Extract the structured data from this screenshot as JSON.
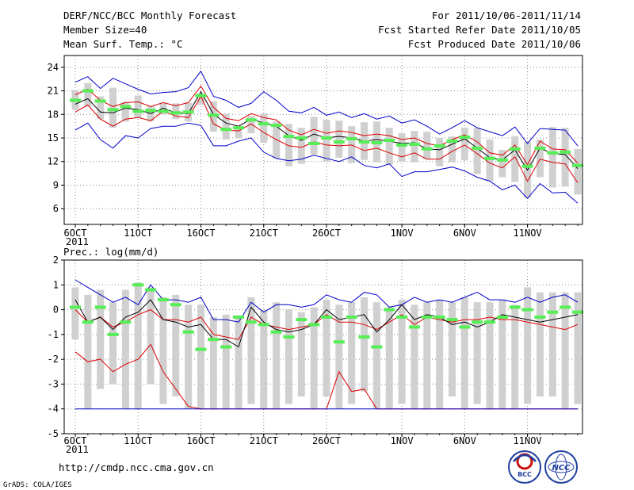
{
  "header": {
    "title": "DERF/NCC/BCC Monthly Forecast",
    "member_size": "Member Size=40",
    "variable": "Mean Surf. Temp.: °C",
    "period": "For 2011/10/06-2011/11/14",
    "started": "Fcst Started Refer Date 2011/10/05",
    "produced": "Fcst Produced Date 2011/10/06"
  },
  "footer": {
    "url": "http://cmdp.ncc.cma.gov.cn",
    "grads": "GrADS: COLA/IGES",
    "logo_bcc": "BCC",
    "logo_ncc": "NCC"
  },
  "colors": {
    "max": "#0000cc",
    "p75": "#dd0000",
    "median": "#000000",
    "box": "#d0d0d0",
    "obs": "#55ee55"
  },
  "chart_data": [
    {
      "type": "line",
      "title": "Mean Surf. Temp.: °C",
      "xlabel": "",
      "ylabel": "",
      "ylim": [
        4,
        25.5
      ],
      "yticks": [
        6,
        9,
        12,
        15,
        18,
        21,
        24
      ],
      "x_ticks": [
        {
          "day": 0,
          "label": "6OCT"
        },
        {
          "day": 5,
          "label": "11OCT"
        },
        {
          "day": 10,
          "label": "16OCT"
        },
        {
          "day": 15,
          "label": "21OCT"
        },
        {
          "day": 20,
          "label": "26OCT"
        },
        {
          "day": 26,
          "label": "1NOV"
        },
        {
          "day": 31,
          "label": "6NOV"
        },
        {
          "day": 36,
          "label": "11NOV"
        }
      ],
      "x_year": "2011",
      "grid": true,
      "series": [
        {
          "name": "Max",
          "color": "#0000cc",
          "values": [
            22.1,
            22.8,
            21.3,
            22.6,
            21.9,
            21.2,
            20.6,
            20.8,
            20.9,
            21.4,
            23.5,
            20.3,
            19.8,
            18.9,
            19.4,
            20.9,
            19.8,
            18.4,
            18.2,
            18.9,
            17.9,
            18.3,
            17.6,
            18.1,
            17.4,
            17.8,
            16.9,
            17.3,
            16.5,
            15.5,
            16.3,
            17.2,
            16.3,
            15.8,
            15.3,
            16.4,
            14.3,
            16.2,
            16.1,
            16.0,
            14.0
          ]
        },
        {
          "name": "P75",
          "color": "#dd0000",
          "values": [
            20.5,
            21.2,
            19.8,
            19.0,
            19.5,
            19.6,
            19.0,
            19.5,
            19.1,
            19.5,
            21.6,
            18.9,
            17.5,
            17.2,
            18.1,
            17.6,
            17.3,
            16.0,
            15.4,
            16.1,
            15.6,
            15.9,
            15.7,
            15.3,
            15.5,
            15.3,
            14.8,
            15.0,
            14.3,
            14.0,
            14.8,
            15.4,
            14.5,
            13.1,
            12.8,
            14.1,
            11.6,
            14.6,
            13.6,
            13.5,
            11.8
          ]
        },
        {
          "name": "Median",
          "color": "#000000",
          "values": [
            19.3,
            20.0,
            18.3,
            18.2,
            18.8,
            18.6,
            18.1,
            18.8,
            18.2,
            18.1,
            20.9,
            18.0,
            16.9,
            16.5,
            17.4,
            16.9,
            16.5,
            15.3,
            14.7,
            15.5,
            15.0,
            15.2,
            15.0,
            14.6,
            14.8,
            14.6,
            14.3,
            14.4,
            13.6,
            13.5,
            14.2,
            14.9,
            13.7,
            12.5,
            12.2,
            13.5,
            10.9,
            13.7,
            13.0,
            12.9,
            11.1
          ]
        },
        {
          "name": "P25",
          "color": "#dd0000",
          "values": [
            18.3,
            19.2,
            17.4,
            16.5,
            17.4,
            17.6,
            17.2,
            18.4,
            17.8,
            17.6,
            20.3,
            16.8,
            16.0,
            15.9,
            16.8,
            15.7,
            14.8,
            14.0,
            13.8,
            14.5,
            14.1,
            14.0,
            14.1,
            13.4,
            13.7,
            13.1,
            12.6,
            13.1,
            12.3,
            12.3,
            13.3,
            14.1,
            13.0,
            11.8,
            11.2,
            12.6,
            9.5,
            12.3,
            11.9,
            11.7,
            9.3
          ]
        },
        {
          "name": "Min",
          "color": "#0000cc",
          "values": [
            16.0,
            16.9,
            14.8,
            13.7,
            15.3,
            15.0,
            16.2,
            16.5,
            16.5,
            16.9,
            16.6,
            14.0,
            14.0,
            14.6,
            15.0,
            13.2,
            12.4,
            12.1,
            12.3,
            12.8,
            12.4,
            12.0,
            12.6,
            11.5,
            11.2,
            11.7,
            10.1,
            10.7,
            10.7,
            11.0,
            11.3,
            10.8,
            10.0,
            9.5,
            8.4,
            9.0,
            7.3,
            9.2,
            8.0,
            8.1,
            6.7
          ]
        }
      ],
      "box_low": [
        18.6,
        19.0,
        17.4,
        16.3,
        17.1,
        17.6,
        17.1,
        18.0,
        17.4,
        17.1,
        19.2,
        15.8,
        14.8,
        15.0,
        15.6,
        14.4,
        12.4,
        11.4,
        11.7,
        12.9,
        12.0,
        12.5,
        11.8,
        12.2,
        11.9,
        11.6,
        12.0,
        11.9,
        12.3,
        11.4,
        11.9,
        12.2,
        10.4,
        9.5,
        10.0,
        9.4,
        7.4,
        10.0,
        8.7,
        8.8,
        7.8
      ],
      "box_high": [
        21.1,
        22.0,
        20.3,
        21.4,
        19.6,
        20.4,
        19.1,
        19.5,
        19.4,
        19.5,
        20.6,
        19.7,
        18.1,
        16.2,
        17.8,
        18.1,
        17.1,
        16.8,
        16.3,
        17.7,
        17.3,
        17.2,
        16.5,
        17.0,
        17.1,
        16.3,
        15.6,
        15.9,
        15.8,
        15.0,
        15.2,
        16.3,
        16.3,
        14.8,
        13.5,
        15.2,
        14.5,
        14.8,
        16.4,
        16.3,
        13.6
      ],
      "observed": [
        19.8,
        21.0,
        19.7,
        18.6,
        19.0,
        18.4,
        18.5,
        18.4,
        18.2,
        18.3,
        20.4,
        17.9,
        16.1,
        16.3,
        17.3,
        16.8,
        16.6,
        15.2,
        15.0,
        14.3,
        15.0,
        14.5,
        14.9,
        14.5,
        14.4,
        14.7,
        14.1,
        14.2,
        13.6,
        14.0,
        14.6,
        15.1,
        13.7,
        12.4,
        12.2,
        13.6,
        11.4,
        13.7,
        13.1,
        13.2,
        11.5
      ]
    },
    {
      "type": "line",
      "title": "Prec.: log(mm/d)",
      "xlabel": "",
      "ylabel": "",
      "ylim": [
        -5,
        2
      ],
      "yticks": [
        -5,
        -4,
        -3,
        -2,
        -1,
        0,
        1,
        2
      ],
      "x_ticks": [
        {
          "day": 0,
          "label": "6OCT"
        },
        {
          "day": 5,
          "label": "11OCT"
        },
        {
          "day": 10,
          "label": "16OCT"
        },
        {
          "day": 15,
          "label": "21OCT"
        },
        {
          "day": 20,
          "label": "26OCT"
        },
        {
          "day": 26,
          "label": "1NOV"
        },
        {
          "day": 31,
          "label": "6NOV"
        },
        {
          "day": 36,
          "label": "11NOV"
        }
      ],
      "x_year": "2011",
      "grid": true,
      "series": [
        {
          "name": "Max",
          "color": "#0000cc",
          "values": [
            1.2,
            0.9,
            0.6,
            0.3,
            0.5,
            0.2,
            1.0,
            0.4,
            0.4,
            0.3,
            0.5,
            -0.4,
            -0.4,
            -0.5,
            0.3,
            -0.1,
            0.2,
            0.2,
            0.1,
            0.2,
            0.6,
            0.4,
            0.3,
            0.7,
            0.6,
            0.1,
            0.2,
            0.5,
            0.3,
            0.4,
            0.3,
            0.5,
            0.7,
            0.4,
            0.4,
            0.3,
            0.5,
            0.3,
            0.5,
            0.6,
            0.3
          ]
        },
        {
          "name": "P75",
          "color": "#dd0000",
          "values": [
            0.0,
            -0.5,
            -0.3,
            -0.7,
            -0.5,
            -0.2,
            0.0,
            -0.4,
            -0.4,
            -0.5,
            -0.3,
            -1.0,
            -1.1,
            -1.2,
            -0.3,
            -0.6,
            -0.7,
            -0.8,
            -0.7,
            -0.6,
            -0.2,
            -0.5,
            -0.5,
            -0.6,
            -0.8,
            -0.5,
            -0.2,
            -0.6,
            -0.3,
            -0.4,
            -0.5,
            -0.4,
            -0.4,
            -0.3,
            -0.4,
            -0.4,
            -0.5,
            -0.6,
            -0.7,
            -0.8,
            -0.6
          ]
        },
        {
          "name": "Median",
          "color": "#000000",
          "values": [
            0.4,
            -0.5,
            -0.3,
            -0.8,
            -0.3,
            -0.1,
            0.4,
            -0.4,
            -0.5,
            -0.7,
            -0.6,
            -1.2,
            -1.2,
            -1.5,
            0.1,
            -0.5,
            -0.8,
            -0.9,
            -0.8,
            -0.6,
            0.0,
            -0.4,
            -0.3,
            -0.2,
            -0.9,
            -0.4,
            0.2,
            -0.4,
            -0.2,
            -0.3,
            -0.6,
            -0.5,
            -0.7,
            -0.5,
            -0.2,
            -0.3,
            -0.4,
            -0.5,
            -0.4,
            -0.3,
            -0.2
          ]
        },
        {
          "name": "P25",
          "color": "#dd0000",
          "values": [
            -1.7,
            -2.1,
            -2.0,
            -2.5,
            -2.2,
            -2.0,
            -1.4,
            -2.5,
            -3.2,
            -3.9,
            -4.0,
            -4.0,
            -4.0,
            -4.0,
            -4.0,
            -4.0,
            -4.0,
            -4.0,
            -4.0,
            -4.0,
            -4.0,
            -2.5,
            -3.3,
            -3.2,
            -4.0,
            -4.0,
            -4.0,
            -4.0,
            -4.0,
            -4.0,
            -4.0,
            -4.0,
            -4.0,
            -4.0,
            -4.0,
            -4.0,
            -4.0,
            -4.0,
            -4.0,
            -4.0,
            -4.0
          ]
        },
        {
          "name": "Min",
          "color": "#0000cc",
          "values": [
            -4.0,
            -4.0,
            -4.0,
            -4.0,
            -4.0,
            -4.0,
            -4.0,
            -4.0,
            -4.0,
            -4.0,
            -4.0,
            -4.0,
            -4.0,
            -4.0,
            -4.0,
            -4.0,
            -4.0,
            -4.0,
            -4.0,
            -4.0,
            -4.0,
            -4.0,
            -4.0,
            -4.0,
            -4.0,
            -4.0,
            -4.0,
            -4.0,
            -4.0,
            -4.0,
            -4.0,
            -4.0,
            -4.0,
            -4.0,
            -4.0,
            -4.0,
            -4.0,
            -4.0,
            -4.0,
            -4.0,
            -4.0
          ]
        }
      ],
      "box_low": [
        -1.2,
        -4.0,
        -3.2,
        -3.0,
        -4.0,
        -4.0,
        -3.0,
        -3.8,
        -3.5,
        -4.0,
        -4.0,
        -4.0,
        -4.0,
        -4.0,
        -3.8,
        -4.0,
        -4.0,
        -3.8,
        -3.5,
        -4.0,
        -3.5,
        -4.0,
        -3.8,
        -3.3,
        -4.0,
        -4.0,
        -3.8,
        -4.0,
        -4.0,
        -4.0,
        -3.5,
        -4.0,
        -3.8,
        -4.0,
        -4.0,
        -4.0,
        -3.8,
        -3.5,
        -3.5,
        -4.0,
        -3.8
      ],
      "box_high": [
        0.9,
        0.6,
        0.8,
        0.3,
        0.8,
        1.1,
        0.9,
        0.5,
        0.6,
        0.2,
        0.2,
        -0.3,
        -0.2,
        -0.3,
        0.5,
        0.0,
        0.3,
        0.0,
        -0.1,
        0.1,
        0.4,
        0.2,
        0.3,
        0.5,
        0.3,
        0.1,
        0.4,
        0.2,
        0.3,
        0.4,
        0.3,
        0.5,
        0.3,
        0.3,
        0.4,
        0.2,
        0.9,
        0.7,
        0.7,
        0.7,
        0.7
      ],
      "observed": [
        0.1,
        -0.5,
        0.1,
        -1.0,
        -0.5,
        1.0,
        0.8,
        0.4,
        0.2,
        -0.9,
        -1.6,
        -1.2,
        -1.5,
        -0.3,
        -0.5,
        -0.6,
        -0.9,
        -1.1,
        -0.4,
        -0.6,
        -0.3,
        -1.3,
        -0.3,
        -1.1,
        -1.5,
        0.0,
        -0.3,
        -0.7,
        -0.3,
        -0.3,
        -0.4,
        -0.7,
        -0.5,
        -0.5,
        -0.3,
        0.1,
        0.0,
        -0.3,
        -0.1,
        0.1,
        -0.1
      ]
    }
  ]
}
